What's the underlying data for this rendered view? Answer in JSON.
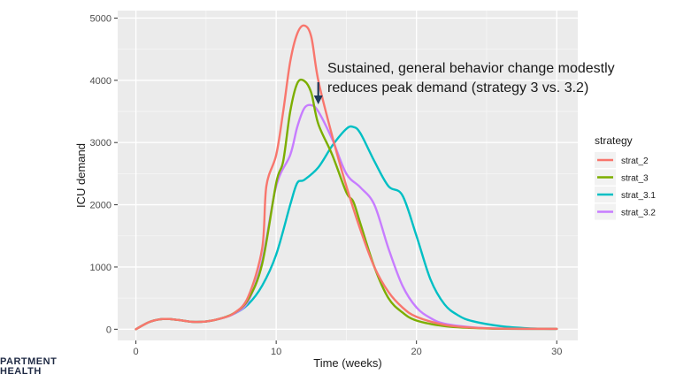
{
  "chart_data": {
    "type": "line",
    "xlabel": "Time (weeks)",
    "ylabel": "ICU demand",
    "xlim": [
      -1.3,
      31.5
    ],
    "ylim": [
      -180,
      5120
    ],
    "x_ticks": [
      0,
      10,
      20,
      30
    ],
    "y_ticks": [
      0,
      1000,
      2000,
      3000,
      4000,
      5000
    ],
    "x_tick_labels": [
      "0",
      "10",
      "20",
      "30"
    ],
    "y_tick_labels": [
      "0",
      "1000",
      "2000",
      "3000",
      "4000",
      "5000"
    ],
    "grid": true,
    "panel_background": "#ebebeb",
    "legend_title": "strategy",
    "legend_position": "right",
    "series": [
      {
        "name": "strat_2",
        "color": "#F8766D",
        "points": [
          [
            0,
            0
          ],
          [
            1,
            120
          ],
          [
            2,
            165
          ],
          [
            3,
            150
          ],
          [
            4,
            120
          ],
          [
            5,
            125
          ],
          [
            6,
            170
          ],
          [
            7,
            260
          ],
          [
            8,
            520
          ],
          [
            9,
            1300
          ],
          [
            9.3,
            2300
          ],
          [
            10,
            2800
          ],
          [
            10.5,
            3500
          ],
          [
            11,
            4300
          ],
          [
            11.5,
            4750
          ],
          [
            12,
            4880
          ],
          [
            12.5,
            4700
          ],
          [
            13,
            4000
          ],
          [
            14,
            3100
          ],
          [
            15,
            2300
          ],
          [
            16,
            1600
          ],
          [
            17,
            1000
          ],
          [
            18,
            600
          ],
          [
            19,
            350
          ],
          [
            20,
            200
          ],
          [
            22,
            70
          ],
          [
            24,
            25
          ],
          [
            26,
            10
          ],
          [
            30,
            5
          ]
        ]
      },
      {
        "name": "strat_3",
        "color": "#7CAE00",
        "points": [
          [
            0,
            0
          ],
          [
            1,
            120
          ],
          [
            2,
            165
          ],
          [
            3,
            150
          ],
          [
            4,
            120
          ],
          [
            5,
            125
          ],
          [
            6,
            170
          ],
          [
            7,
            260
          ],
          [
            8,
            480
          ],
          [
            9,
            1050
          ],
          [
            10,
            2350
          ],
          [
            10.5,
            2700
          ],
          [
            11,
            3500
          ],
          [
            11.5,
            3950
          ],
          [
            12,
            3990
          ],
          [
            12.5,
            3800
          ],
          [
            13,
            3300
          ],
          [
            14,
            2800
          ],
          [
            15,
            2200
          ],
          [
            15.5,
            2050
          ],
          [
            16,
            1700
          ],
          [
            17,
            1000
          ],
          [
            18,
            500
          ],
          [
            19,
            270
          ],
          [
            20,
            140
          ],
          [
            22,
            50
          ],
          [
            24,
            20
          ],
          [
            26,
            8
          ],
          [
            30,
            5
          ]
        ]
      },
      {
        "name": "strat_3.1",
        "color": "#00BFC4",
        "points": [
          [
            0,
            0
          ],
          [
            1,
            120
          ],
          [
            2,
            165
          ],
          [
            3,
            150
          ],
          [
            4,
            120
          ],
          [
            5,
            125
          ],
          [
            6,
            170
          ],
          [
            7,
            250
          ],
          [
            8,
            400
          ],
          [
            9,
            700
          ],
          [
            10,
            1200
          ],
          [
            11,
            2000
          ],
          [
            11.5,
            2350
          ],
          [
            12,
            2400
          ],
          [
            13,
            2600
          ],
          [
            14,
            2950
          ],
          [
            15,
            3220
          ],
          [
            15.5,
            3250
          ],
          [
            16,
            3150
          ],
          [
            17,
            2700
          ],
          [
            18,
            2300
          ],
          [
            19,
            2150
          ],
          [
            20,
            1500
          ],
          [
            21,
            800
          ],
          [
            22,
            400
          ],
          [
            23,
            220
          ],
          [
            24,
            130
          ],
          [
            26,
            50
          ],
          [
            28,
            15
          ],
          [
            30,
            5
          ]
        ]
      },
      {
        "name": "strat_3.2",
        "color": "#C77CFF",
        "points": [
          [
            0,
            0
          ],
          [
            1,
            120
          ],
          [
            2,
            165
          ],
          [
            3,
            150
          ],
          [
            4,
            120
          ],
          [
            5,
            125
          ],
          [
            6,
            170
          ],
          [
            7,
            250
          ],
          [
            8,
            450
          ],
          [
            9,
            1100
          ],
          [
            10,
            2300
          ],
          [
            11,
            2800
          ],
          [
            11.5,
            3250
          ],
          [
            12,
            3550
          ],
          [
            12.5,
            3600
          ],
          [
            13,
            3500
          ],
          [
            14,
            3050
          ],
          [
            15,
            2500
          ],
          [
            16,
            2280
          ],
          [
            17,
            2000
          ],
          [
            18,
            1300
          ],
          [
            19,
            700
          ],
          [
            20,
            350
          ],
          [
            21,
            180
          ],
          [
            22,
            90
          ],
          [
            24,
            30
          ],
          [
            26,
            10
          ],
          [
            30,
            5
          ]
        ]
      }
    ],
    "annotation": {
      "lines": [
        "Sustained, general behavior change modestly",
        "reduces peak demand (strategy 3 vs. 3.2)"
      ],
      "arrow_color": "#1f3a5a"
    }
  },
  "footer": {
    "logo_lines": [
      "PARTMENT",
      "HEALTH"
    ]
  }
}
